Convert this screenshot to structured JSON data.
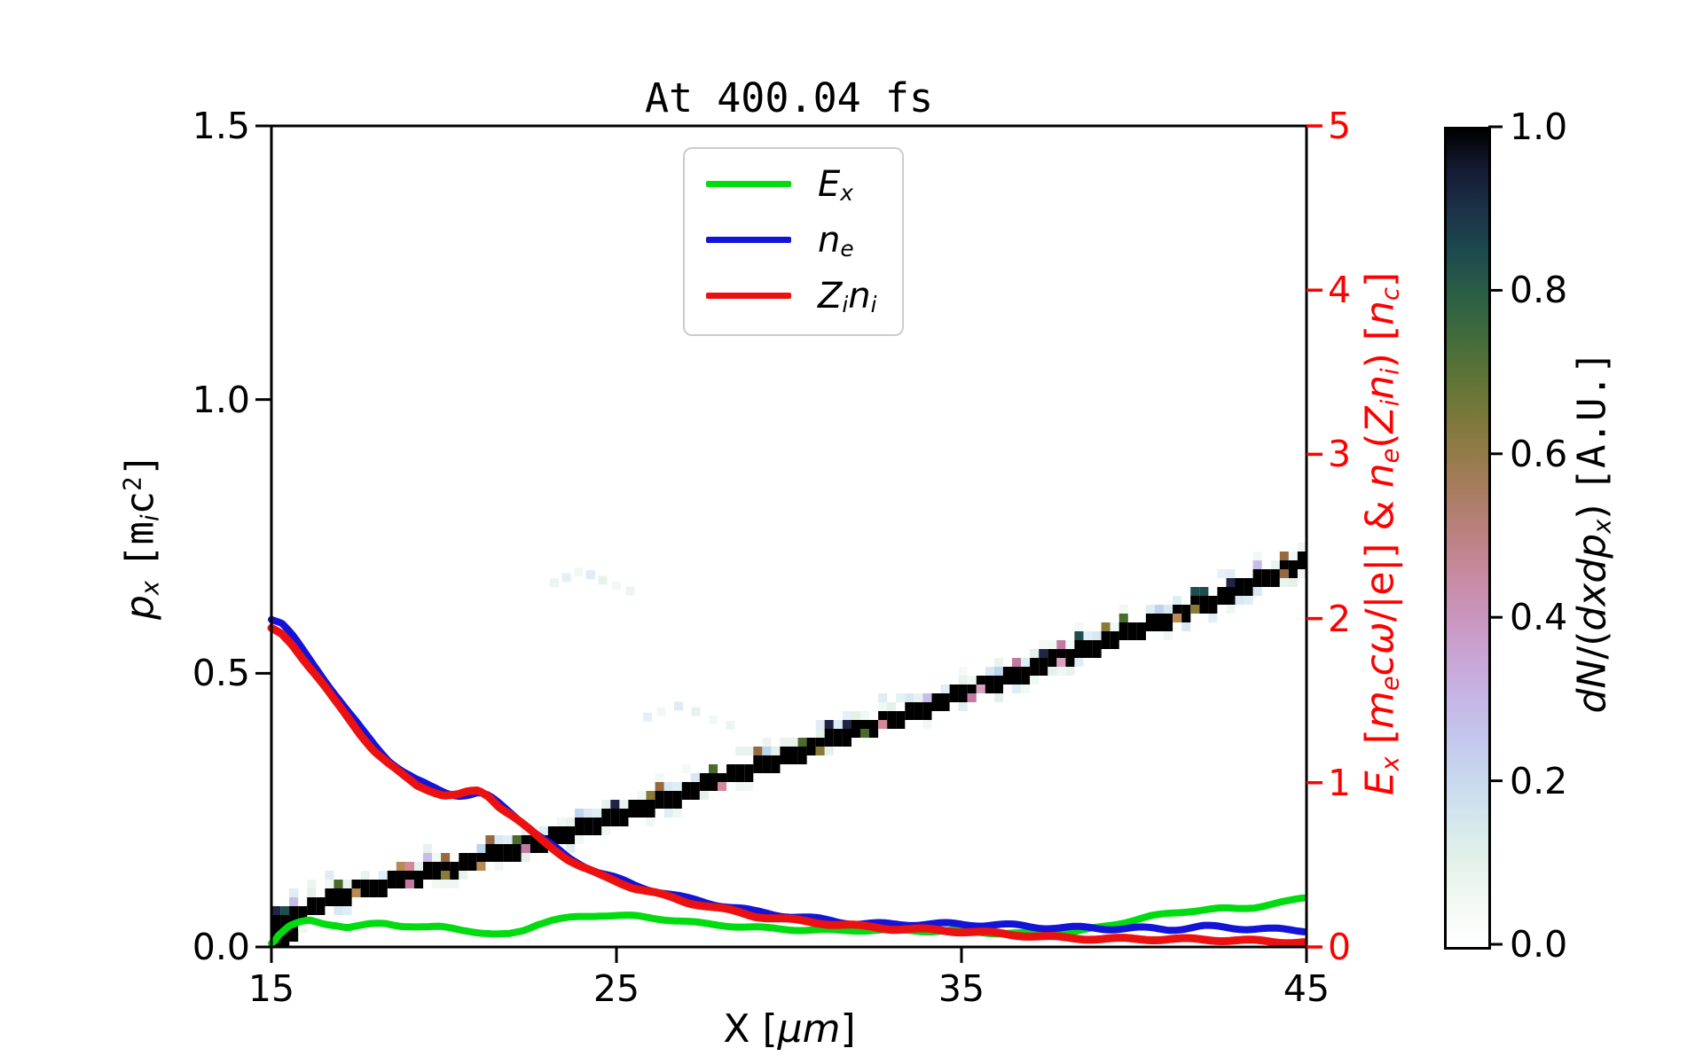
{
  "chart_data": {
    "type": "composite",
    "title": "At 400.04 fs",
    "background": "#ffffff",
    "x_axis": {
      "label": "X [μm]",
      "label_segments": [
        {
          "t": "X"
        },
        {
          "t": " ["
        },
        {
          "t": "μ",
          "i": 1
        },
        {
          "t": "m",
          "i": 1
        },
        {
          "t": "]"
        }
      ],
      "range": [
        15,
        45
      ],
      "ticks": [
        15,
        25,
        35,
        45
      ],
      "tick_labels": [
        "15",
        "25",
        "35",
        "45"
      ]
    },
    "y_left_axis": {
      "label": "p_x [m_i c^2]",
      "label_segments": [
        {
          "t": "p",
          "i": 1
        },
        {
          "t": "x",
          "i": 1,
          "sub": 1
        },
        {
          "t": " "
        },
        {
          "t": "[",
          "m": 1
        },
        {
          "t": "m",
          "m": 1
        },
        {
          "t": "i",
          "i": 1,
          "sub": 1
        },
        {
          "t": "c",
          "m": 1
        },
        {
          "t": "2",
          "m": 1,
          "sup": 1
        },
        {
          "t": "]",
          "m": 1
        }
      ],
      "range": [
        0,
        1.5
      ],
      "ticks": [
        0,
        0.5,
        1.0,
        1.5
      ],
      "tick_labels": [
        "0.0",
        "0.5",
        "1.0",
        "1.5"
      ]
    },
    "y_right_axis": {
      "label": "E_x [m_e cω/|e|] & n_e(Z_i n_i) [n_c]",
      "label_segments": [
        {
          "t": "E",
          "i": 1
        },
        {
          "t": "x",
          "i": 1,
          "sub": 1
        },
        {
          "t": " ["
        },
        {
          "t": "m",
          "i": 1
        },
        {
          "t": "e",
          "i": 1,
          "sub": 1
        },
        {
          "t": "c",
          "i": 1
        },
        {
          "t": "ω",
          "i": 1
        },
        {
          "t": "/|e|] & "
        },
        {
          "t": "n",
          "i": 1
        },
        {
          "t": "e",
          "i": 1,
          "sub": 1
        },
        {
          "t": "("
        },
        {
          "t": "Z",
          "i": 1
        },
        {
          "t": "i",
          "i": 1,
          "sub": 1
        },
        {
          "t": "n",
          "i": 1
        },
        {
          "t": "i",
          "i": 1,
          "sub": 1
        },
        {
          "t": ") ["
        },
        {
          "t": "n",
          "i": 1
        },
        {
          "t": "c",
          "i": 1,
          "sub": 1
        },
        {
          "t": "]"
        }
      ],
      "color": "#ff0000",
      "range": [
        0,
        5
      ],
      "ticks": [
        0,
        1,
        2,
        3,
        4,
        5
      ],
      "tick_labels": [
        "0",
        "1",
        "2",
        "3",
        "4",
        "5"
      ]
    },
    "legend": {
      "position": "upper center",
      "items": [
        {
          "name": "E_x",
          "color": "#00dc10",
          "segments": [
            {
              "t": "E",
              "i": 1
            },
            {
              "t": "x",
              "i": 1,
              "sub": 1
            }
          ]
        },
        {
          "name": "n_e",
          "color": "#1414d8",
          "segments": [
            {
              "t": "n",
              "i": 1
            },
            {
              "t": "e",
              "i": 1,
              "sub": 1
            }
          ]
        },
        {
          "name": "Z_i n_i",
          "color": "#ec1111",
          "segments": [
            {
              "t": "Z",
              "i": 1
            },
            {
              "t": "i",
              "i": 1,
              "sub": 1
            },
            {
              "t": "n",
              "i": 1
            },
            {
              "t": "i",
              "i": 1,
              "sub": 1
            }
          ]
        }
      ]
    },
    "series": [
      {
        "name": "E_x",
        "axis": "right",
        "color": "#00dc10",
        "points": [
          [
            15,
            0.02
          ],
          [
            15.2,
            0.08
          ],
          [
            15.5,
            0.13
          ],
          [
            15.8,
            0.15
          ],
          [
            16.1,
            0.16
          ],
          [
            16.5,
            0.14
          ],
          [
            16.9,
            0.13
          ],
          [
            17.2,
            0.115
          ],
          [
            17.5,
            0.12
          ],
          [
            17.9,
            0.13
          ],
          [
            18.3,
            0.135
          ],
          [
            18.7,
            0.125
          ],
          [
            19.1,
            0.12
          ],
          [
            19.5,
            0.115
          ],
          [
            19.9,
            0.12
          ],
          [
            20.3,
            0.115
          ],
          [
            20.7,
            0.105
          ],
          [
            21.1,
            0.09
          ],
          [
            21.5,
            0.08
          ],
          [
            21.9,
            0.085
          ],
          [
            22.3,
            0.11
          ],
          [
            22.7,
            0.145
          ],
          [
            23.1,
            0.165
          ],
          [
            23.5,
            0.175
          ],
          [
            24,
            0.185
          ],
          [
            24.5,
            0.19
          ],
          [
            25,
            0.185
          ],
          [
            25.5,
            0.18
          ],
          [
            26,
            0.17
          ],
          [
            26.5,
            0.16
          ],
          [
            27,
            0.15
          ],
          [
            27.5,
            0.14
          ],
          [
            28,
            0.135
          ],
          [
            28.5,
            0.13
          ],
          [
            29,
            0.125
          ],
          [
            29.5,
            0.12
          ],
          [
            30,
            0.115
          ],
          [
            30.5,
            0.11
          ],
          [
            31,
            0.105
          ],
          [
            31.5,
            0.1
          ],
          [
            32,
            0.1
          ],
          [
            33,
            0.095
          ],
          [
            34,
            0.09
          ],
          [
            35,
            0.095
          ],
          [
            36,
            0.088
          ],
          [
            37,
            0.088
          ],
          [
            38,
            0.095
          ],
          [
            38.5,
            0.105
          ],
          [
            39,
            0.12
          ],
          [
            39.5,
            0.14
          ],
          [
            40,
            0.16
          ],
          [
            40.5,
            0.18
          ],
          [
            41,
            0.195
          ],
          [
            41.5,
            0.21
          ],
          [
            42,
            0.22
          ],
          [
            42.5,
            0.228
          ],
          [
            43,
            0.233
          ],
          [
            43.5,
            0.245
          ],
          [
            44,
            0.265
          ],
          [
            44.5,
            0.285
          ],
          [
            45,
            0.31
          ]
        ]
      },
      {
        "name": "n_e",
        "axis": "right",
        "color": "#1414d8",
        "points": [
          [
            15,
            2.0
          ],
          [
            15.3,
            1.97
          ],
          [
            15.6,
            1.9
          ],
          [
            16,
            1.79
          ],
          [
            16.4,
            1.68
          ],
          [
            16.8,
            1.56
          ],
          [
            17.2,
            1.44
          ],
          [
            17.6,
            1.33
          ],
          [
            18,
            1.23
          ],
          [
            18.4,
            1.14
          ],
          [
            18.8,
            1.07
          ],
          [
            19.2,
            1.01
          ],
          [
            19.6,
            0.97
          ],
          [
            20,
            0.94
          ],
          [
            20.4,
            0.92
          ],
          [
            20.7,
            0.92
          ],
          [
            21,
            0.93
          ],
          [
            21.3,
            0.91
          ],
          [
            21.6,
            0.87
          ],
          [
            22,
            0.81
          ],
          [
            22.4,
            0.74
          ],
          [
            22.8,
            0.67
          ],
          [
            23.2,
            0.61
          ],
          [
            23.6,
            0.55
          ],
          [
            24,
            0.51
          ],
          [
            24.5,
            0.46
          ],
          [
            25,
            0.42
          ],
          [
            25.5,
            0.38
          ],
          [
            26,
            0.35
          ],
          [
            26.5,
            0.32
          ],
          [
            27,
            0.29
          ],
          [
            27.5,
            0.27
          ],
          [
            28,
            0.25
          ],
          [
            28.5,
            0.23
          ],
          [
            29,
            0.21
          ],
          [
            29.5,
            0.2
          ],
          [
            30,
            0.19
          ],
          [
            30.5,
            0.18
          ],
          [
            31,
            0.17
          ],
          [
            31.5,
            0.16
          ],
          [
            32,
            0.15
          ],
          [
            33,
            0.14
          ],
          [
            34,
            0.14
          ],
          [
            35,
            0.13
          ],
          [
            36,
            0.13
          ],
          [
            37,
            0.12
          ],
          [
            38,
            0.12
          ],
          [
            39,
            0.12
          ],
          [
            40,
            0.12
          ],
          [
            41,
            0.11
          ],
          [
            42,
            0.12
          ],
          [
            43,
            0.11
          ],
          [
            44,
            0.1
          ],
          [
            45,
            0.1
          ]
        ]
      },
      {
        "name": "Z_i n_i",
        "axis": "right",
        "color": "#ec1111",
        "points": [
          [
            15,
            1.94
          ],
          [
            15.3,
            1.91
          ],
          [
            15.6,
            1.85
          ],
          [
            16,
            1.74
          ],
          [
            16.4,
            1.63
          ],
          [
            16.8,
            1.51
          ],
          [
            17.2,
            1.4
          ],
          [
            17.6,
            1.29
          ],
          [
            18,
            1.19
          ],
          [
            18.4,
            1.11
          ],
          [
            18.8,
            1.04
          ],
          [
            19.2,
            0.98
          ],
          [
            19.6,
            0.95
          ],
          [
            20,
            0.92
          ],
          [
            20.4,
            0.92
          ],
          [
            20.7,
            0.94
          ],
          [
            21,
            0.95
          ],
          [
            21.3,
            0.92
          ],
          [
            21.6,
            0.86
          ],
          [
            22,
            0.8
          ],
          [
            22.4,
            0.73
          ],
          [
            22.8,
            0.66
          ],
          [
            23.2,
            0.6
          ],
          [
            23.6,
            0.54
          ],
          [
            24,
            0.49
          ],
          [
            24.5,
            0.44
          ],
          [
            25,
            0.4
          ],
          [
            25.5,
            0.36
          ],
          [
            26,
            0.33
          ],
          [
            26.5,
            0.3
          ],
          [
            27,
            0.27
          ],
          [
            27.5,
            0.25
          ],
          [
            28,
            0.23
          ],
          [
            28.5,
            0.21
          ],
          [
            29,
            0.19
          ],
          [
            29.5,
            0.18
          ],
          [
            30,
            0.17
          ],
          [
            30.5,
            0.16
          ],
          [
            31,
            0.15
          ],
          [
            31.5,
            0.14
          ],
          [
            32,
            0.13
          ],
          [
            33,
            0.11
          ],
          [
            34,
            0.1
          ],
          [
            35,
            0.09
          ],
          [
            36,
            0.08
          ],
          [
            37,
            0.07
          ],
          [
            38,
            0.06
          ],
          [
            39,
            0.055
          ],
          [
            40,
            0.05
          ],
          [
            41,
            0.045
          ],
          [
            42,
            0.04
          ],
          [
            43,
            0.035
          ],
          [
            44,
            0.032
          ],
          [
            45,
            0.03
          ]
        ]
      }
    ],
    "heatmap": {
      "name": "dN/(dxdp_x)",
      "core_color": "#000000",
      "band_points_x_p": [
        [
          15,
          0.03
        ],
        [
          17,
          0.095
        ],
        [
          20,
          0.14
        ],
        [
          23,
          0.195
        ],
        [
          26,
          0.26
        ],
        [
          29,
          0.325
        ],
        [
          32,
          0.395
        ],
        [
          35,
          0.46
        ],
        [
          38,
          0.53
        ],
        [
          41,
          0.6
        ],
        [
          43,
          0.65
        ],
        [
          45,
          0.705
        ]
      ],
      "accent_colors": [
        "#b98a55",
        "#96693f",
        "#8a7a3a",
        "#c27ba0",
        "#d4899a",
        "#2e5f45",
        "#1f4d4d",
        "#232347",
        "#c8bce8",
        "#bcd4ec",
        "#d9a0c0",
        "#4a6b2e"
      ],
      "halo_colors": [
        "#e8f3ee",
        "#ddeef5",
        "#eef7f2",
        "#d9e7f3",
        "#e4f0ea",
        "#f0f8f3"
      ],
      "smudges_x_p": [
        [
          23.2,
          0.665
        ],
        [
          23.55,
          0.675
        ],
        [
          23.9,
          0.685
        ],
        [
          24.25,
          0.68
        ],
        [
          24.6,
          0.67
        ],
        [
          25,
          0.66
        ],
        [
          25.4,
          0.65
        ],
        [
          25.9,
          0.42
        ],
        [
          26.3,
          0.43
        ],
        [
          26.8,
          0.44
        ],
        [
          27.3,
          0.43
        ],
        [
          27.8,
          0.415
        ],
        [
          28.3,
          0.405
        ]
      ]
    },
    "colorbar": {
      "label": "dN/(dxdp_x) [A.U.]",
      "label_segments": [
        {
          "t": "d",
          "i": 1
        },
        {
          "t": "N",
          "i": 1
        },
        {
          "t": "/("
        },
        {
          "t": "d",
          "i": 1
        },
        {
          "t": "x",
          "i": 1
        },
        {
          "t": "d",
          "i": 1
        },
        {
          "t": "p",
          "i": 1
        },
        {
          "t": "x",
          "i": 1,
          "sub": 1
        },
        {
          "t": ") "
        },
        {
          "t": "[A.U.]",
          "m": 1
        }
      ],
      "range": [
        0,
        1
      ],
      "ticks": [
        0,
        0.2,
        0.4,
        0.6,
        0.8,
        1.0
      ],
      "tick_labels": [
        "0.0",
        "0.2",
        "0.4",
        "0.6",
        "0.8",
        "1.0"
      ],
      "gradient_stops": [
        [
          0,
          "#ffffff"
        ],
        [
          0.05,
          "#f4faf6"
        ],
        [
          0.1,
          "#e5f2ea"
        ],
        [
          0.15,
          "#d6e8eb"
        ],
        [
          0.2,
          "#c9daee"
        ],
        [
          0.25,
          "#c4c9ee"
        ],
        [
          0.3,
          "#c5b7e6"
        ],
        [
          0.35,
          "#c8a7d7"
        ],
        [
          0.4,
          "#ca97c0"
        ],
        [
          0.45,
          "#c78ba4"
        ],
        [
          0.5,
          "#bd8284"
        ],
        [
          0.55,
          "#ab7d65"
        ],
        [
          0.6,
          "#957b4a"
        ],
        [
          0.65,
          "#7a783b"
        ],
        [
          0.7,
          "#5c7336"
        ],
        [
          0.75,
          "#406b3c"
        ],
        [
          0.8,
          "#2b5e46"
        ],
        [
          0.85,
          "#1d4a4e"
        ],
        [
          0.9,
          "#1b3247"
        ],
        [
          0.95,
          "#151b33"
        ],
        [
          1,
          "#000000"
        ]
      ]
    }
  }
}
